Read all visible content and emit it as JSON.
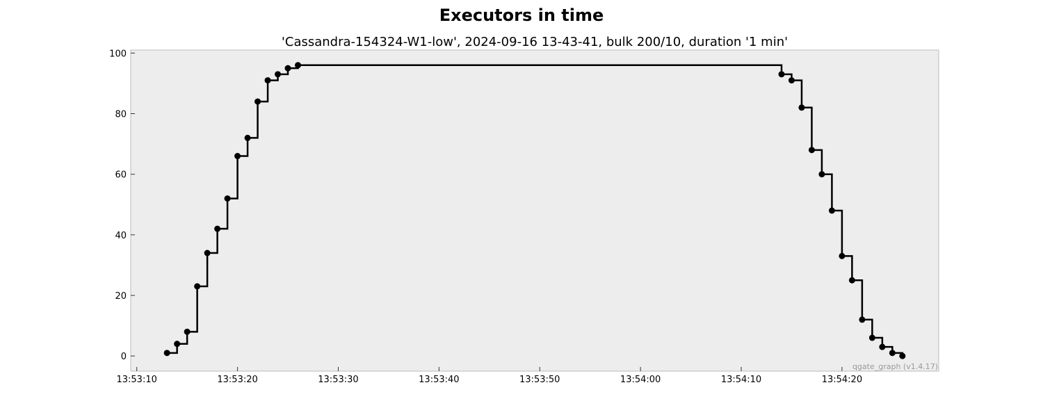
{
  "chart_data": {
    "type": "line",
    "title": "Executors in time",
    "subtitle": "'Cassandra-154324-W1-low', 2024-09-16 13-43-41, bulk 200/10, duration '1 min'",
    "xlabel": "",
    "ylabel": "",
    "x_ticks": [
      "13:53:10",
      "13:53:20",
      "13:53:30",
      "13:53:40",
      "13:53:50",
      "13:54:00",
      "13:54:10",
      "13:54:20"
    ],
    "y_ticks": [
      0,
      20,
      40,
      60,
      80,
      100
    ],
    "xlim": [
      "13:53:09.4",
      "13:54:29.6"
    ],
    "ylim": [
      -5,
      101
    ],
    "grid": false,
    "step": "post",
    "series": [
      {
        "x": [
          "13:53:13",
          "13:53:14",
          "13:53:15",
          "13:53:16",
          "13:53:17",
          "13:53:18",
          "13:53:19",
          "13:53:20",
          "13:53:21",
          "13:53:22",
          "13:53:23",
          "13:53:24",
          "13:53:25",
          "13:53:26",
          "13:54:14",
          "13:54:15",
          "13:54:16",
          "13:54:17",
          "13:54:18",
          "13:54:19",
          "13:54:20",
          "13:54:21",
          "13:54:22",
          "13:54:23",
          "13:54:24",
          "13:54:25",
          "13:54:26"
        ],
        "y": [
          1,
          4,
          8,
          23,
          34,
          42,
          52,
          66,
          72,
          84,
          91,
          93,
          95,
          96,
          93,
          91,
          82,
          68,
          60,
          48,
          33,
          25,
          12,
          6,
          3,
          1,
          0
        ]
      }
    ],
    "colors": {
      "line": "#000000",
      "plot_background": "#ededed",
      "frame": "#bbbbbb"
    }
  },
  "watermark": "qgate_graph (v1.4.17)"
}
